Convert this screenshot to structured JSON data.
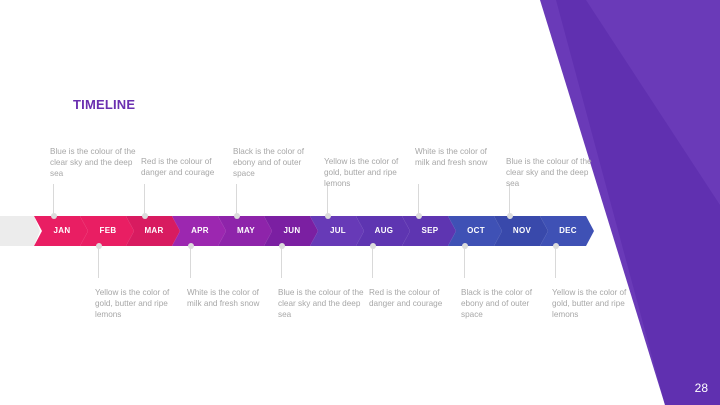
{
  "slide": {
    "title": "TIMELINE",
    "page_number": "28",
    "accent_color": "#5e35b1"
  },
  "months": [
    {
      "label": "JAN",
      "color": "#e91e63"
    },
    {
      "label": "FEB",
      "color": "#e91e63"
    },
    {
      "label": "MAR",
      "color": "#d81b60"
    },
    {
      "label": "APR",
      "color": "#9c27b0"
    },
    {
      "label": "MAY",
      "color": "#8e24aa"
    },
    {
      "label": "JUN",
      "color": "#7b1fa2"
    },
    {
      "label": "JUL",
      "color": "#673ab7"
    },
    {
      "label": "AUG",
      "color": "#5e35b1"
    },
    {
      "label": "SEP",
      "color": "#5e35b1"
    },
    {
      "label": "OCT",
      "color": "#3f51b5"
    },
    {
      "label": "NOV",
      "color": "#3949ab"
    },
    {
      "label": "DEC",
      "color": "#3f51b5"
    }
  ],
  "notes_above": [
    "Blue is the colour of the clear sky and the deep sea",
    "Red is the colour of danger and courage",
    "Black is the color of ebony and of outer space",
    "Yellow is the color of gold, butter and ripe lemons",
    "White is the color of milk and fresh snow",
    "Blue is the colour of the clear sky and the deep sea"
  ],
  "notes_below": [
    "Yellow is the color of gold, butter and ripe lemons",
    "White is the color of milk and fresh snow",
    "Blue is the colour of the clear sky and the deep sea",
    "Red is the colour of danger and courage",
    "Black is the color of ebony and of outer space",
    "Yellow is the color of gold, butter and ripe lemons"
  ]
}
